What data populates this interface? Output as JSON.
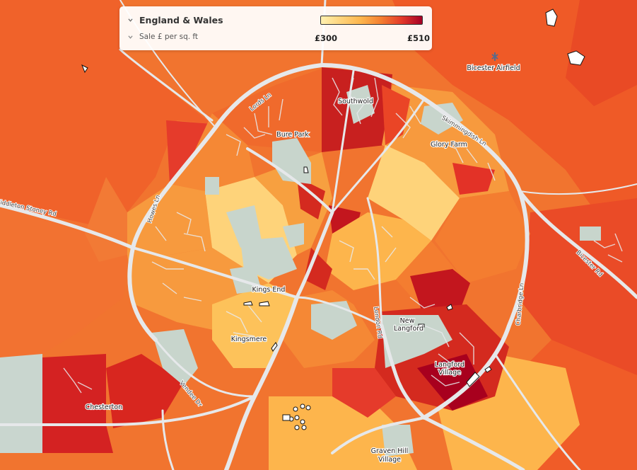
{
  "legend": {
    "region": "England & Wales",
    "metric": "Sale £ per sq. ft",
    "min_label": "£300",
    "max_label": "£510",
    "min_value": 300,
    "max_value": 510,
    "colors": [
      "#fff1b0",
      "#fed37a",
      "#fdb54c",
      "#f47d30",
      "#e3392a",
      "#a50026"
    ]
  },
  "places": {
    "southwold": "Southwold",
    "bure_park": "Bure Park",
    "glory_farm": "Glory Farm",
    "kings_end": "Kings End",
    "kingsmere": "Kingsmere",
    "new_langford_1": "New",
    "new_langford_2": "Langford",
    "langford_village_1": "Langford",
    "langford_village_2": "Village",
    "chesterton": "Chesterton",
    "graven_hill_1": "Graven Hill",
    "graven_hill_2": "Village",
    "airfield": "Bicester Airfield"
  },
  "roads": {
    "lords_ln": "Lords Ln",
    "skimmingdish_ln": "Skimmingdish Ln",
    "howes_ln": "Howes Ln",
    "middleton_stoney_rd": "Middleton Stoney Rd",
    "vendee_dr": "Vendee Dr",
    "london_rd": "London Rd",
    "charbridge_ln": "Charbridge Ln",
    "bicester_rd": "Bicester Rd"
  }
}
